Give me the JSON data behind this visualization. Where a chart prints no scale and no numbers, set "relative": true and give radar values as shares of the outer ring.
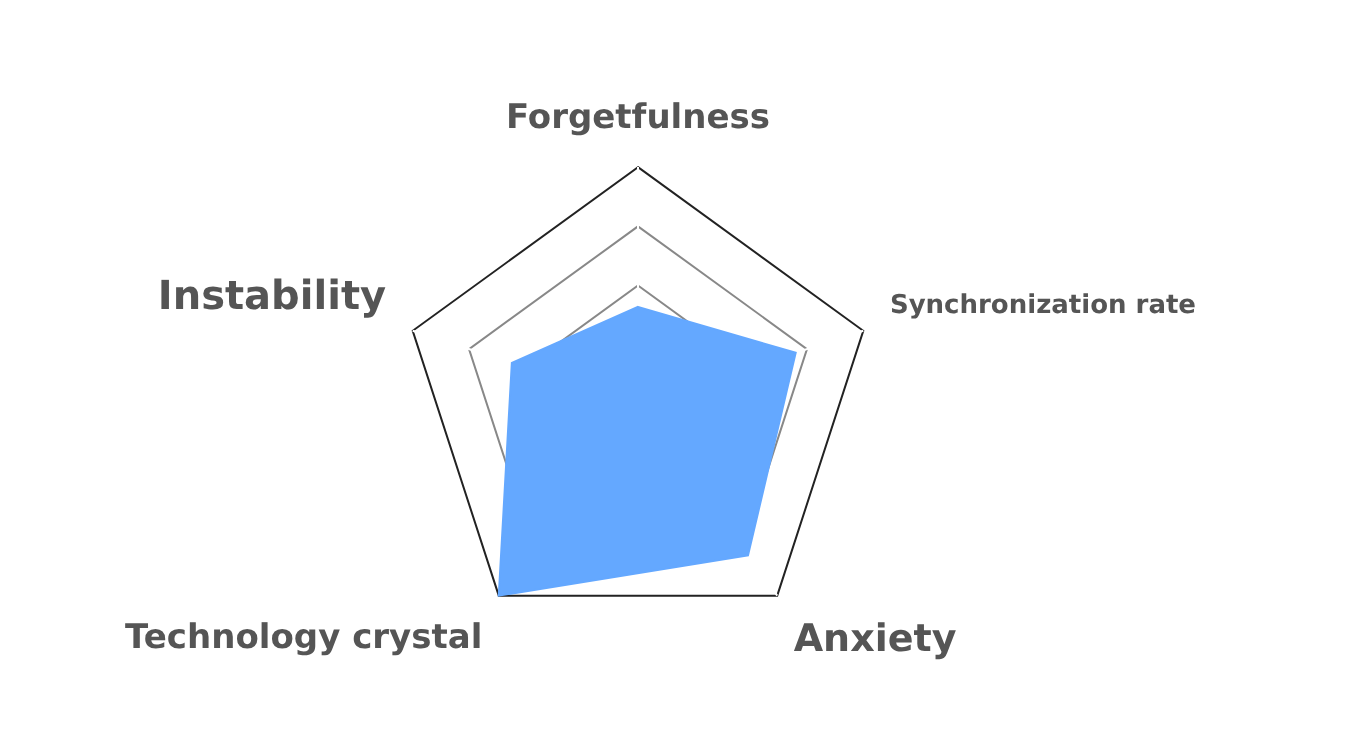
{
  "chart_data": {
    "type": "radar",
    "relative": true,
    "categories": [
      "Forgetfulness",
      "Synchronization rate",
      "Anxiety",
      "Technology crystal",
      "Instability"
    ],
    "series": [
      {
        "color": "#64a8ff",
        "values": [
          0.41,
          0.7,
          0.79,
          1,
          0.56
        ]
      }
    ]
  }
}
